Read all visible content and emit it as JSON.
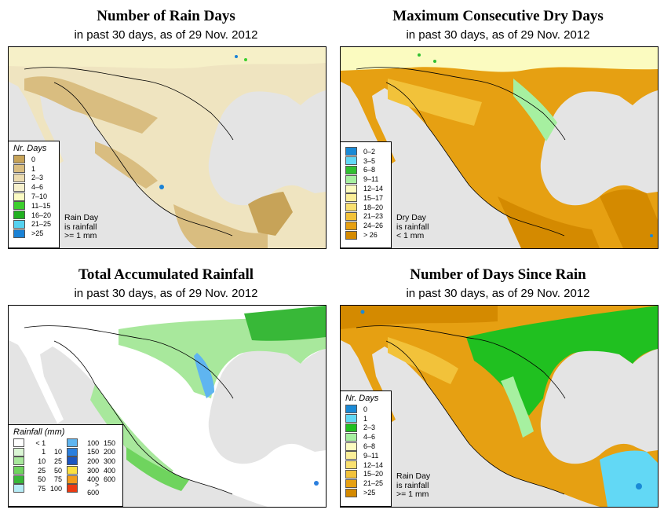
{
  "panels": [
    {
      "title": "Number of Rain Days",
      "subtitle": "in past 30 days, as of  29 Nov. 2012",
      "legend": {
        "title": "Nr. Days",
        "items": [
          {
            "label": "0",
            "color": "#c7a358"
          },
          {
            "label": "1",
            "color": "#d9bd80"
          },
          {
            "label": "2–3",
            "color": "#ecdcb0"
          },
          {
            "label": "4–6",
            "color": "#f6f0cc"
          },
          {
            "label": "7–10",
            "color": "#fbfbc3"
          },
          {
            "label": "11–15",
            "color": "#3ccf2d"
          },
          {
            "label": "16–20",
            "color": "#20b020"
          },
          {
            "label": "21–25",
            "color": "#55d2f0"
          },
          {
            "label": ">25",
            "color": "#1a82d6"
          }
        ]
      },
      "note": [
        "Rain Day",
        "is rainfall",
        ">= 1 mm"
      ]
    },
    {
      "title": "Maximum Consecutive Dry Days",
      "subtitle": "in past 30 days, as of  29 Nov. 2012",
      "legend": {
        "title": "",
        "items": [
          {
            "label": "0–2",
            "color": "#1a8ad6"
          },
          {
            "label": "3–5",
            "color": "#62d8f5"
          },
          {
            "label": "6–8",
            "color": "#30c030"
          },
          {
            "label": "9–11",
            "color": "#a6f0a0"
          },
          {
            "label": "12–14",
            "color": "#fbfbc0"
          },
          {
            "label": "15–17",
            "color": "#fbee98"
          },
          {
            "label": "18–20",
            "color": "#f9e070"
          },
          {
            "label": "21–23",
            "color": "#f2c23a"
          },
          {
            "label": "24–26",
            "color": "#e6a012"
          },
          {
            "label": "> 26",
            "color": "#d48a00"
          }
        ]
      },
      "note": [
        "Dry Day",
        "is rainfall",
        "< 1 mm"
      ]
    },
    {
      "title": "Total Accumulated Rainfall",
      "subtitle": "in past 30 days, as of  29 Nov. 2012",
      "legend": {
        "title": "Rainfall (mm)",
        "items": [
          {
            "lo": "< 1",
            "hi": "",
            "color": "#ffffff"
          },
          {
            "lo": "1",
            "hi": "10",
            "color": "#daf5d4"
          },
          {
            "lo": "10",
            "hi": "25",
            "color": "#a8e89c"
          },
          {
            "lo": "25",
            "hi": "50",
            "color": "#6fd45e"
          },
          {
            "lo": "50",
            "hi": "75",
            "color": "#38b838"
          },
          {
            "lo": "75",
            "hi": "100",
            "color": "#b6ecf6"
          },
          {
            "lo": "100",
            "hi": "150",
            "color": "#5fb5f0"
          },
          {
            "lo": "150",
            "hi": "200",
            "color": "#2a7fde"
          },
          {
            "lo": "200",
            "hi": "300",
            "color": "#1c56c0"
          },
          {
            "lo": "300",
            "hi": "400",
            "color": "#fbe040"
          },
          {
            "lo": "400",
            "hi": "600",
            "color": "#f29a1a"
          },
          {
            "lo": "> 600",
            "hi": "",
            "color": "#ec3a12"
          }
        ]
      }
    },
    {
      "title": "Number of Days Since Rain",
      "subtitle": "in past 30 days, as of  29 Nov. 2012",
      "legend": {
        "title": "Nr. Days",
        "items": [
          {
            "label": "0",
            "color": "#1a8ad6"
          },
          {
            "label": "1",
            "color": "#62d8f5"
          },
          {
            "label": "2–3",
            "color": "#20c020"
          },
          {
            "label": "4–6",
            "color": "#a6f0a0"
          },
          {
            "label": "6–8",
            "color": "#fbfbc0"
          },
          {
            "label": "9–11",
            "color": "#fbee98"
          },
          {
            "label": "12–14",
            "color": "#f9e070"
          },
          {
            "label": "15–20",
            "color": "#f2c23a"
          },
          {
            "label": "21–25",
            "color": "#e6a012"
          },
          {
            "label": ">25",
            "color": "#d48a00"
          }
        ]
      },
      "note": [
        "Rain Day",
        "is rainfall",
        ">= 1 mm"
      ]
    }
  ]
}
